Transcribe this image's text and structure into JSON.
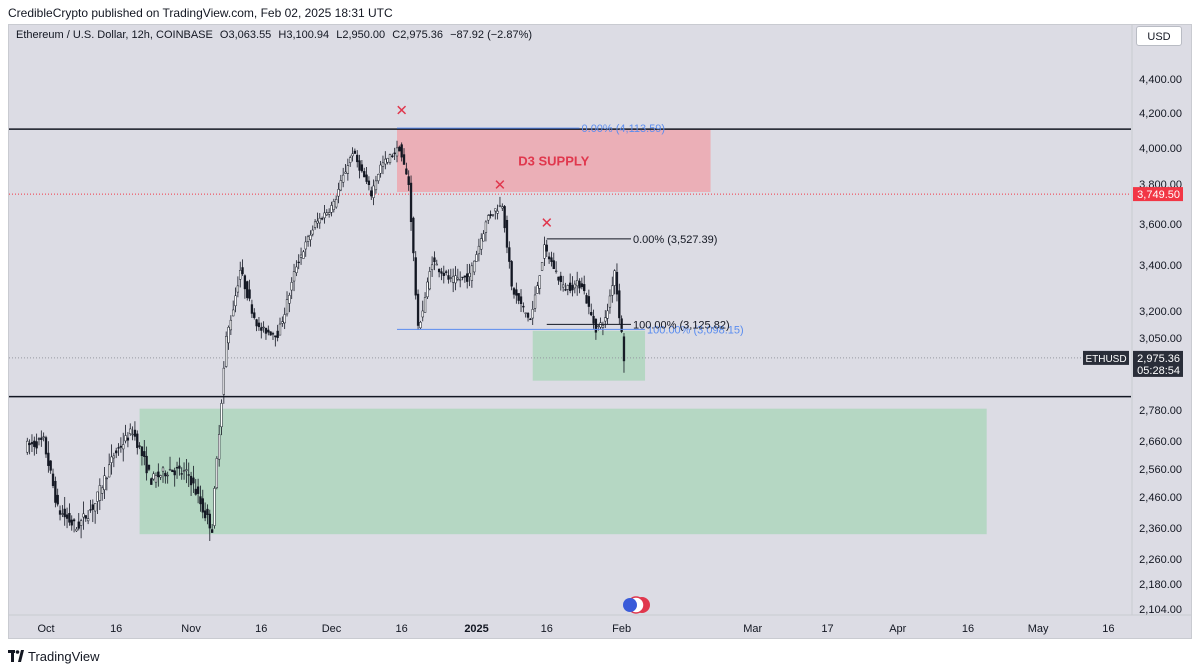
{
  "header": {
    "publisher_text": "CredibleCrypto published on TradingView.com, Feb 02, 2025 18:31 UTC"
  },
  "symbol_bar": {
    "symbol_text": "Ethereum / U.S. Dollar, 12h, COINBASE",
    "open_label": "O",
    "open_value": "3,063.55",
    "high_label": "H",
    "high_value": "3,100.94",
    "low_label": "L",
    "low_value": "2,950.00",
    "close_label": "C",
    "close_value": "2,975.36",
    "change_text": "−87.92 (−2.87%)"
  },
  "currency_button": "USD",
  "footer": {
    "brand": "TradingView"
  },
  "colors": {
    "background": "#dcdce4",
    "candle": "#131722",
    "supply_zone": "#f0a0a8",
    "demand_zone": "#a8d5b8",
    "fib_blue": "#5b8def",
    "marker_red": "#e0374d",
    "price_tag_dark": "#2a2e39",
    "price_tag_red": "#f23645"
  },
  "chart_data": {
    "type": "candlestick",
    "symbol": "ETHUSD",
    "interval": "12h",
    "y_axis": {
      "ticks": [
        "4,400.00",
        "4,200.00",
        "4,000.00",
        "3,800.00",
        "3,600.00",
        "3,400.00",
        "3,200.00",
        "3,050.00",
        "2,780.00",
        "2,660.00",
        "2,560.00",
        "2,460.00",
        "2,360.00",
        "2,260.00",
        "2,180.00",
        "2,104.00"
      ],
      "tick_values": [
        4400,
        4200,
        4000,
        3800,
        3600,
        3400,
        3200,
        3050,
        2780,
        2660,
        2560,
        2460,
        2360,
        2260,
        2180,
        2104
      ]
    },
    "x_axis": {
      "ticks": [
        "Oct",
        "16",
        "Nov",
        "16",
        "Dec",
        "16",
        "2025",
        "16",
        "Feb",
        "Mar",
        "17",
        "Apr",
        "16",
        "May",
        "16"
      ],
      "tick_dates": [
        "2024-10-01",
        "2024-10-16",
        "2024-11-01",
        "2024-11-16",
        "2024-12-01",
        "2024-12-16",
        "2025-01-01",
        "2025-01-16",
        "2025-02-01",
        "2025-03-01",
        "2025-03-17",
        "2025-04-01",
        "2025-04-16",
        "2025-05-01",
        "2025-05-16"
      ]
    },
    "price_path": [
      [
        "2024-09-27",
        2640
      ],
      [
        "2024-10-01",
        2660
      ],
      [
        "2024-10-04",
        2420
      ],
      [
        "2024-10-08",
        2360
      ],
      [
        "2024-10-12",
        2440
      ],
      [
        "2024-10-16",
        2610
      ],
      [
        "2024-10-20",
        2700
      ],
      [
        "2024-10-24",
        2520
      ],
      [
        "2024-10-28",
        2560
      ],
      [
        "2024-11-01",
        2540
      ],
      [
        "2024-11-04",
        2420
      ],
      [
        "2024-11-06",
        2360
      ],
      [
        "2024-11-09",
        3050
      ],
      [
        "2024-11-12",
        3380
      ],
      [
        "2024-11-16",
        3100
      ],
      [
        "2024-11-20",
        3070
      ],
      [
        "2024-11-24",
        3400
      ],
      [
        "2024-11-28",
        3600
      ],
      [
        "2024-12-02",
        3700
      ],
      [
        "2024-12-06",
        3980
      ],
      [
        "2024-12-10",
        3750
      ],
      [
        "2024-12-12",
        3900
      ],
      [
        "2024-12-16",
        4000
      ],
      [
        "2024-12-18",
        3800
      ],
      [
        "2024-12-20",
        3100
      ],
      [
        "2024-12-23",
        3420
      ],
      [
        "2024-12-27",
        3330
      ],
      [
        "2024-12-31",
        3350
      ],
      [
        "2025-01-04",
        3640
      ],
      [
        "2025-01-07",
        3700
      ],
      [
        "2025-01-09",
        3300
      ],
      [
        "2025-01-13",
        3150
      ],
      [
        "2025-01-16",
        3480
      ],
      [
        "2025-01-20",
        3300
      ],
      [
        "2025-01-24",
        3320
      ],
      [
        "2025-01-27",
        3100
      ],
      [
        "2025-01-29",
        3150
      ],
      [
        "2025-01-31",
        3380
      ],
      [
        "2025-02-02",
        2975
      ]
    ],
    "horizontal_lines": [
      {
        "price": 4108,
        "color": "#131722"
      },
      {
        "price": 2830,
        "color": "#131722"
      },
      {
        "price": 2975.36,
        "color": "#9598a1",
        "style": "dotted"
      },
      {
        "price": 3749.5,
        "color": "#f23645",
        "style": "dotted"
      }
    ],
    "zones": [
      {
        "label": "D3 SUPPLY",
        "start": "2024-12-15",
        "end": "2025-02-20",
        "low": 3760,
        "high": 4108,
        "color": "#f0a0a8"
      },
      {
        "label": "",
        "start": "2025-01-13",
        "end": "2025-02-06",
        "low": 2890,
        "high": 3090,
        "color": "#a8d5b8"
      },
      {
        "label": "",
        "start": "2024-10-21",
        "end": "2025-04-20",
        "low": 2340,
        "high": 2785,
        "color": "#a8d5b8"
      }
    ],
    "fib_levels": [
      {
        "text": "0.00% (4,113.59)",
        "price": 4113.59,
        "start": "2024-12-15",
        "end": "2025-01-23",
        "color": "#5b8def"
      },
      {
        "text": "100.00% (3,098.15)",
        "price": 3098.15,
        "start": "2024-12-15",
        "end": "2025-02-06",
        "color": "#5b8def"
      },
      {
        "text": "0.00% (3,527.39)",
        "price": 3527.39,
        "start": "2025-01-16",
        "end": "2025-02-03",
        "color": "#131722"
      },
      {
        "text": "100.00% (3,125.82)",
        "price": 3125.82,
        "start": "2025-01-16",
        "end": "2025-02-03",
        "color": "#131722"
      }
    ],
    "markers": [
      {
        "symbol": "✕",
        "date": "2024-12-16",
        "price": 4220
      },
      {
        "symbol": "✕",
        "date": "2025-01-06",
        "price": 3800
      },
      {
        "symbol": "✕",
        "date": "2025-01-16",
        "price": 3610
      }
    ],
    "zone_label": "D3 SUPPLY",
    "price_labels": [
      {
        "text": "3,749.50",
        "price": 3749.5,
        "style": "red"
      },
      {
        "text": "2,975.36",
        "price": 2975.36,
        "style": "dark",
        "symbol": "ETHUSD",
        "countdown": "05:28:54"
      }
    ]
  }
}
